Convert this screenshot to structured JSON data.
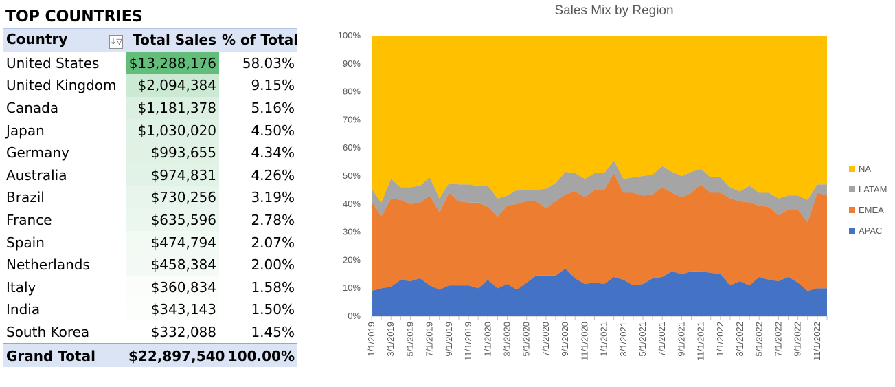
{
  "pivot": {
    "heading": "TOP COUNTRIES",
    "columns": {
      "country": "Country",
      "sales": "Total Sales",
      "pct": "% of Total"
    },
    "filter_icon": "filter-sort-icon",
    "rows": [
      {
        "country": "United States",
        "sales": "$13,288,176",
        "pct": "58.03%",
        "value": 13288176
      },
      {
        "country": "United Kingdom",
        "sales": "$2,094,384",
        "pct": "9.15%",
        "value": 2094384
      },
      {
        "country": "Canada",
        "sales": "$1,181,378",
        "pct": "5.16%",
        "value": 1181378
      },
      {
        "country": "Japan",
        "sales": "$1,030,020",
        "pct": "4.50%",
        "value": 1030020
      },
      {
        "country": "Germany",
        "sales": "$993,655",
        "pct": "4.34%",
        "value": 993655
      },
      {
        "country": "Australia",
        "sales": "$974,831",
        "pct": "4.26%",
        "value": 974831
      },
      {
        "country": "Brazil",
        "sales": "$730,256",
        "pct": "3.19%",
        "value": 730256
      },
      {
        "country": "France",
        "sales": "$635,596",
        "pct": "2.78%",
        "value": 635596
      },
      {
        "country": "Spain",
        "sales": "$474,794",
        "pct": "2.07%",
        "value": 474794
      },
      {
        "country": "Netherlands",
        "sales": "$458,384",
        "pct": "2.00%",
        "value": 458384
      },
      {
        "country": "Italy",
        "sales": "$360,834",
        "pct": "1.58%",
        "value": 360834
      },
      {
        "country": "India",
        "sales": "$343,143",
        "pct": "1.50%",
        "value": 343143
      },
      {
        "country": "South Korea",
        "sales": "$332,088",
        "pct": "1.45%",
        "value": 332088
      }
    ],
    "total": {
      "label": "Grand Total",
      "sales": "$22,897,540",
      "pct": "100.00%"
    },
    "colors": {
      "scale_high": "#63be7b",
      "scale_low": "#ffffff",
      "header_bg": "#dbe4f4"
    }
  },
  "chart_data": {
    "type": "area",
    "stacked": "percent",
    "title": "Sales Mix by Region",
    "xlabel": "",
    "ylabel": "",
    "ylim": [
      0,
      100
    ],
    "yticks": [
      "0%",
      "10%",
      "20%",
      "30%",
      "40%",
      "50%",
      "60%",
      "70%",
      "80%",
      "90%",
      "100%"
    ],
    "x": [
      "1/1/2019",
      "2/1/2019",
      "3/1/2019",
      "4/1/2019",
      "5/1/2019",
      "6/1/2019",
      "7/1/2019",
      "8/1/2019",
      "9/1/2019",
      "10/1/2019",
      "11/1/2019",
      "12/1/2019",
      "1/1/2020",
      "2/1/2020",
      "3/1/2020",
      "4/1/2020",
      "5/1/2020",
      "6/1/2020",
      "7/1/2020",
      "8/1/2020",
      "9/1/2020",
      "10/1/2020",
      "11/1/2020",
      "12/1/2020",
      "1/1/2021",
      "2/1/2021",
      "3/1/2021",
      "4/1/2021",
      "5/1/2021",
      "6/1/2021",
      "7/1/2021",
      "8/1/2021",
      "9/1/2021",
      "10/1/2021",
      "11/1/2021",
      "12/1/2021",
      "1/1/2022",
      "2/1/2022",
      "3/1/2022",
      "4/1/2022",
      "5/1/2022",
      "6/1/2022",
      "7/1/2022",
      "8/1/2022",
      "9/1/2022",
      "10/1/2022",
      "11/1/2022",
      "12/1/2022"
    ],
    "xticks": [
      "1/1/2019",
      "3/1/2019",
      "5/1/2019",
      "7/1/2019",
      "9/1/2019",
      "11/1/2019",
      "1/1/2020",
      "3/1/2020",
      "5/1/2020",
      "7/1/2020",
      "9/1/2020",
      "11/1/2020",
      "1/1/2021",
      "3/1/2021",
      "5/1/2021",
      "7/1/2021",
      "9/1/2021",
      "11/1/2021",
      "1/1/2022",
      "3/1/2022",
      "5/1/2022",
      "7/1/2022",
      "9/1/2022",
      "11/1/2022"
    ],
    "series": [
      {
        "name": "APAC",
        "color": "#4472c4",
        "values": [
          9,
          10,
          10.5,
          13,
          12.5,
          13.5,
          11,
          9.5,
          11,
          11,
          11,
          10,
          13,
          10,
          11.5,
          9.5,
          12,
          14.5,
          14.5,
          14.5,
          17,
          13.5,
          11.5,
          12,
          11.5,
          14,
          13,
          11,
          11.5,
          13.5,
          14,
          16,
          15,
          16,
          16,
          15.5,
          15,
          11,
          12.5,
          11,
          14,
          13,
          12.5,
          14,
          12,
          9,
          10,
          10
        ]
      },
      {
        "name": "EMEA",
        "color": "#ed7d31",
        "values": [
          32,
          25.5,
          31.5,
          28.5,
          27.5,
          27,
          32,
          27.5,
          33,
          30,
          29.5,
          30.5,
          26,
          25.5,
          28,
          30.5,
          29,
          26.5,
          24,
          26.5,
          26.5,
          31,
          31,
          33,
          33.5,
          37,
          31,
          33,
          31.5,
          30,
          32,
          28,
          27.5,
          28,
          31,
          28.5,
          29,
          31,
          28.5,
          29.5,
          25.5,
          26,
          23.5,
          24,
          26,
          24.5,
          34,
          33
        ]
      },
      {
        "name": "LATAM",
        "color": "#a5a5a5",
        "values": [
          4.5,
          5,
          7,
          4.5,
          6,
          6,
          6.5,
          5,
          3.5,
          6,
          6.5,
          6,
          7.5,
          6.5,
          3.5,
          5,
          4,
          4,
          7,
          6.5,
          8,
          6.5,
          6.5,
          6,
          6,
          4.5,
          5,
          5.5,
          7,
          7,
          7.5,
          7.5,
          7.5,
          7.5,
          5.5,
          5.5,
          5.5,
          4,
          3.5,
          6,
          4.5,
          5,
          6,
          5,
          5,
          8,
          3,
          4
        ]
      },
      {
        "name": "NA",
        "color": "#ffc000",
        "values": [
          54.5,
          59.5,
          51,
          54,
          54,
          53.5,
          50.5,
          58,
          52.5,
          53,
          53,
          53.5,
          53.5,
          58,
          57,
          55,
          55,
          55,
          54.5,
          52.5,
          48.5,
          49,
          51,
          49,
          49,
          44.5,
          51,
          50.5,
          50,
          49.5,
          46.5,
          48.5,
          50,
          48.5,
          47.5,
          50.5,
          50.5,
          54,
          55.5,
          53.5,
          56,
          56,
          58,
          57,
          57,
          58.5,
          53,
          53
        ]
      }
    ],
    "legend": {
      "placement": "right",
      "order": [
        "NA",
        "LATAM",
        "EMEA",
        "APAC"
      ]
    },
    "grid": false
  }
}
